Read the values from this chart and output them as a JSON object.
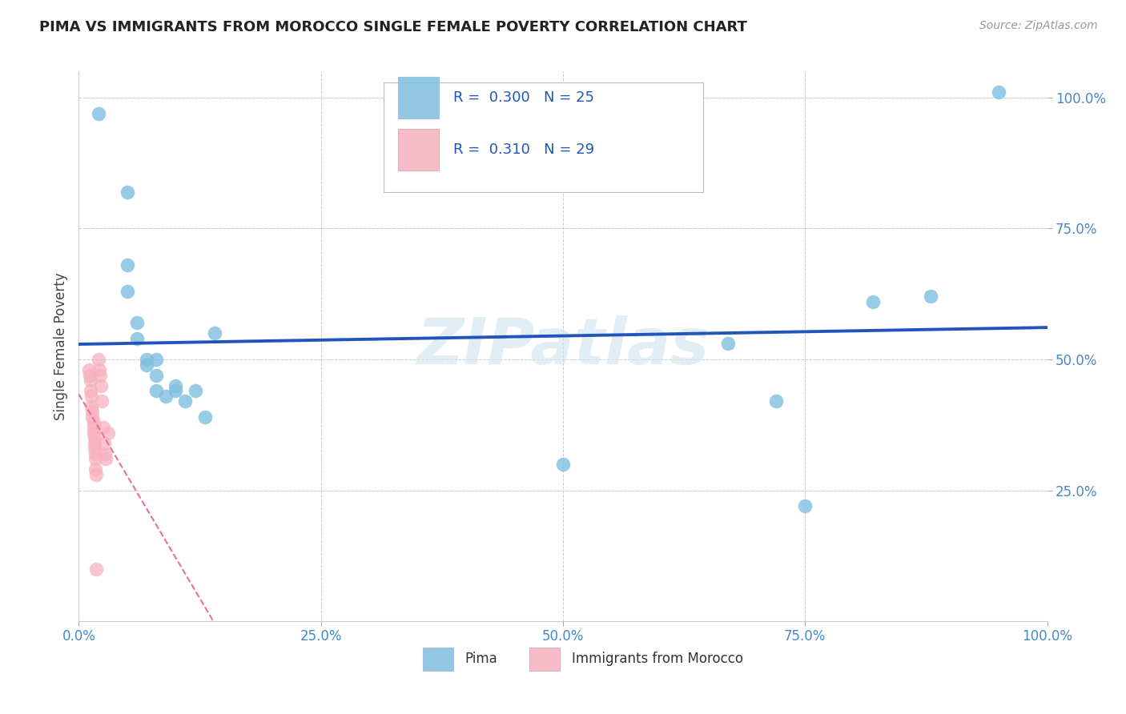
{
  "title": "PIMA VS IMMIGRANTS FROM MOROCCO SINGLE FEMALE POVERTY CORRELATION CHART",
  "source": "Source: ZipAtlas.com",
  "ylabel": "Single Female Poverty",
  "xlim": [
    0.0,
    1.0
  ],
  "ylim": [
    0.0,
    1.05
  ],
  "xtick_labels": [
    "0.0%",
    "25.0%",
    "50.0%",
    "75.0%",
    "100.0%"
  ],
  "xtick_vals": [
    0.0,
    0.25,
    0.5,
    0.75,
    1.0
  ],
  "ytick_labels": [
    "25.0%",
    "50.0%",
    "75.0%",
    "100.0%"
  ],
  "ytick_vals": [
    0.25,
    0.5,
    0.75,
    1.0
  ],
  "pima_color": "#7fbfdf",
  "morocco_color": "#f7b0c0",
  "pima_R": 0.3,
  "pima_N": 25,
  "morocco_R": 0.31,
  "morocco_N": 29,
  "pima_line_color": "#2255bb",
  "morocco_line_color": "#e87090",
  "watermark": "ZIPatlas",
  "grid_color": "#cccccc",
  "pima_points": [
    [
      0.02,
      0.97
    ],
    [
      0.05,
      0.82
    ],
    [
      0.05,
      0.68
    ],
    [
      0.05,
      0.63
    ],
    [
      0.06,
      0.57
    ],
    [
      0.06,
      0.54
    ],
    [
      0.07,
      0.5
    ],
    [
      0.07,
      0.49
    ],
    [
      0.08,
      0.5
    ],
    [
      0.08,
      0.47
    ],
    [
      0.08,
      0.44
    ],
    [
      0.09,
      0.43
    ],
    [
      0.1,
      0.45
    ],
    [
      0.1,
      0.44
    ],
    [
      0.11,
      0.42
    ],
    [
      0.12,
      0.44
    ],
    [
      0.13,
      0.39
    ],
    [
      0.14,
      0.55
    ],
    [
      0.5,
      0.3
    ],
    [
      0.67,
      0.53
    ],
    [
      0.72,
      0.42
    ],
    [
      0.75,
      0.22
    ],
    [
      0.82,
      0.61
    ],
    [
      0.88,
      0.62
    ],
    [
      0.95,
      1.01
    ]
  ],
  "morocco_points": [
    [
      0.01,
      0.48
    ],
    [
      0.011,
      0.47
    ],
    [
      0.012,
      0.46
    ],
    [
      0.012,
      0.44
    ],
    [
      0.013,
      0.43
    ],
    [
      0.013,
      0.41
    ],
    [
      0.014,
      0.4
    ],
    [
      0.014,
      0.39
    ],
    [
      0.015,
      0.38
    ],
    [
      0.015,
      0.37
    ],
    [
      0.015,
      0.36
    ],
    [
      0.016,
      0.35
    ],
    [
      0.016,
      0.34
    ],
    [
      0.016,
      0.33
    ],
    [
      0.017,
      0.32
    ],
    [
      0.017,
      0.31
    ],
    [
      0.017,
      0.29
    ],
    [
      0.018,
      0.28
    ],
    [
      0.02,
      0.5
    ],
    [
      0.021,
      0.48
    ],
    [
      0.022,
      0.47
    ],
    [
      0.023,
      0.45
    ],
    [
      0.024,
      0.42
    ],
    [
      0.025,
      0.37
    ],
    [
      0.026,
      0.34
    ],
    [
      0.027,
      0.32
    ],
    [
      0.028,
      0.31
    ],
    [
      0.03,
      0.36
    ],
    [
      0.018,
      0.1
    ]
  ]
}
